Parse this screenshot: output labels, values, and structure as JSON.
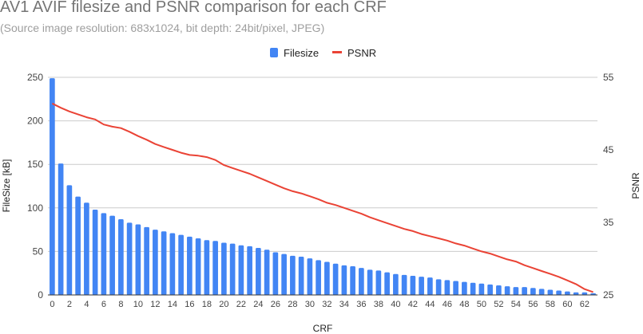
{
  "chart_data": {
    "type": "bar+line",
    "title": "AV1 AVIF filesize and PSNR comparison for each CRF",
    "subtitle": "(Source image resolution: 683x1024, bit depth: 24bit/pixel, JPEG)",
    "xlabel": "CRF",
    "ylabel_left": "FileSize [kB]",
    "ylabel_right": "PSNR",
    "legend_position": "top",
    "grid": true,
    "x": [
      0,
      1,
      2,
      3,
      4,
      5,
      6,
      7,
      8,
      9,
      10,
      11,
      12,
      13,
      14,
      15,
      16,
      17,
      18,
      19,
      20,
      21,
      22,
      23,
      24,
      25,
      26,
      27,
      28,
      29,
      30,
      31,
      32,
      33,
      34,
      35,
      36,
      37,
      38,
      39,
      40,
      41,
      42,
      43,
      44,
      45,
      46,
      47,
      48,
      49,
      50,
      51,
      52,
      53,
      54,
      55,
      56,
      57,
      58,
      59,
      60,
      61,
      62,
      63
    ],
    "x_ticks": [
      0,
      2,
      4,
      6,
      8,
      10,
      12,
      14,
      16,
      18,
      20,
      22,
      24,
      26,
      28,
      30,
      32,
      34,
      36,
      38,
      40,
      42,
      44,
      46,
      48,
      50,
      52,
      54,
      56,
      58,
      60,
      62
    ],
    "y_left_ticks": [
      0,
      50,
      100,
      150,
      200,
      250
    ],
    "y_left_range": [
      0,
      250
    ],
    "y_right_ticks": [
      25,
      35,
      45,
      55
    ],
    "y_right_range": [
      25,
      55
    ],
    "series": [
      {
        "name": "Filesize",
        "type": "bar",
        "axis": "left",
        "color": "#4285f4",
        "values": [
          249,
          151,
          126,
          113,
          106,
          98,
          94,
          91,
          87,
          83,
          81,
          78,
          75,
          73,
          71,
          69,
          67,
          65,
          63,
          62,
          60,
          59,
          57,
          56,
          54,
          52,
          49,
          47,
          45,
          44,
          42,
          40,
          38,
          36,
          34,
          33,
          31,
          29,
          28,
          26,
          24,
          23,
          22,
          21,
          20,
          18,
          17,
          16,
          15,
          14,
          13,
          12,
          11,
          10,
          9,
          9,
          8,
          7,
          6,
          5,
          4,
          3,
          3,
          2
        ]
      },
      {
        "name": "PSNR",
        "type": "line",
        "axis": "right",
        "color": "#ea4335",
        "values": [
          51.4,
          50.8,
          50.3,
          49.9,
          49.5,
          49.2,
          48.5,
          48.2,
          48.0,
          47.5,
          46.9,
          46.4,
          45.8,
          45.4,
          45.0,
          44.6,
          44.3,
          44.2,
          44.0,
          43.6,
          42.9,
          42.5,
          42.1,
          41.7,
          41.2,
          40.7,
          40.2,
          39.7,
          39.3,
          39.0,
          38.6,
          38.2,
          37.7,
          37.4,
          37.0,
          36.6,
          36.2,
          35.7,
          35.3,
          34.9,
          34.5,
          34.1,
          33.8,
          33.4,
          33.1,
          32.8,
          32.5,
          32.1,
          31.8,
          31.4,
          31.0,
          30.7,
          30.3,
          29.9,
          29.6,
          29.1,
          28.7,
          28.3,
          27.9,
          27.5,
          27.0,
          26.5,
          25.8,
          25.4
        ]
      }
    ]
  }
}
